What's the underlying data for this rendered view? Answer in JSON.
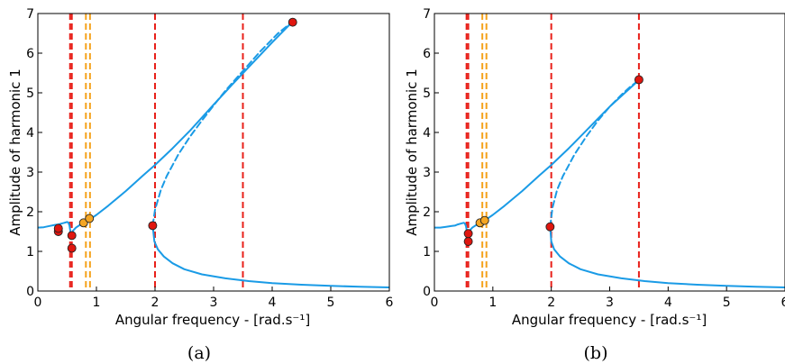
{
  "colors": {
    "curve": "#1a9be6",
    "red_line": "#e8201a",
    "orange_line": "#f4a21c",
    "red_marker": "#e0160f",
    "orange_marker": "#f5a623",
    "marker_edge": "#222222"
  },
  "chart_data": [
    {
      "type": "line",
      "caption": "(a)",
      "xlabel": "Angular frequency - [rad.s⁻¹]",
      "ylabel": "Amplitude of harmonic 1",
      "xlim": [
        0,
        6
      ],
      "ylim": [
        0,
        7
      ],
      "xticks": [
        0,
        1,
        2,
        3,
        4,
        5,
        6
      ],
      "yticks": [
        0,
        1,
        2,
        3,
        4,
        5,
        6,
        7
      ],
      "grid": false,
      "series": [
        {
          "style": "solid",
          "x": [
            0,
            0.1,
            0.2,
            0.3,
            0.35,
            0.4,
            0.45,
            0.5,
            0.52,
            0.54,
            0.55,
            0.56,
            0.57,
            0.58,
            0.6,
            0.65,
            0.7,
            0.75,
            0.8,
            0.9,
            1.0,
            1.2,
            1.5,
            1.8,
            2.0,
            2.3,
            2.6,
            3.0,
            3.3,
            3.6,
            4.0,
            4.35
          ],
          "y": [
            1.6,
            1.61,
            1.64,
            1.67,
            1.68,
            1.7,
            1.72,
            1.74,
            1.73,
            1.65,
            1.55,
            1.45,
            1.4,
            1.44,
            1.52,
            1.6,
            1.65,
            1.7,
            1.74,
            1.82,
            1.92,
            2.15,
            2.52,
            2.92,
            3.18,
            3.6,
            4.05,
            4.7,
            5.18,
            5.65,
            6.27,
            6.8
          ]
        },
        {
          "style": "dashed",
          "x": [
            1.96,
            2.0,
            2.1,
            2.2,
            2.4,
            2.6,
            2.8,
            3.0,
            3.2,
            3.5,
            3.8,
            4.1,
            4.35
          ],
          "y": [
            1.65,
            2.05,
            2.55,
            2.9,
            3.45,
            3.9,
            4.3,
            4.68,
            5.05,
            5.55,
            6.05,
            6.5,
            6.8
          ]
        },
        {
          "style": "solid",
          "x": [
            1.96,
            1.99,
            2.05,
            2.15,
            2.3,
            2.5,
            2.8,
            3.2,
            3.6,
            4.0,
            4.5,
            5.0,
            5.5,
            6.0
          ],
          "y": [
            1.65,
            1.25,
            1.05,
            0.87,
            0.7,
            0.55,
            0.42,
            0.32,
            0.25,
            0.2,
            0.16,
            0.13,
            0.11,
            0.09
          ]
        }
      ],
      "vlines": [
        {
          "x": 0.55,
          "color": "red"
        },
        {
          "x": 0.58,
          "color": "red"
        },
        {
          "x": 0.82,
          "color": "orange"
        },
        {
          "x": 0.89,
          "color": "orange"
        },
        {
          "x": 2.0,
          "color": "red"
        },
        {
          "x": 3.5,
          "color": "red"
        }
      ],
      "markers": [
        {
          "x": 0.35,
          "y": 1.5,
          "color": "red"
        },
        {
          "x": 0.35,
          "y": 1.58,
          "color": "red"
        },
        {
          "x": 0.58,
          "y": 1.08,
          "color": "red"
        },
        {
          "x": 0.58,
          "y": 1.4,
          "color": "red"
        },
        {
          "x": 0.78,
          "y": 1.72,
          "color": "orange"
        },
        {
          "x": 0.88,
          "y": 1.83,
          "color": "orange"
        },
        {
          "x": 1.96,
          "y": 1.65,
          "color": "red"
        },
        {
          "x": 4.35,
          "y": 6.78,
          "color": "red"
        }
      ]
    },
    {
      "type": "line",
      "caption": "(b)",
      "xlabel": "Angular frequency - [rad.s⁻¹]",
      "ylabel": "Amplitude of harmonic 1",
      "xlim": [
        0,
        6
      ],
      "ylim": [
        0,
        7
      ],
      "xticks": [
        0,
        1,
        2,
        3,
        4,
        5,
        6
      ],
      "yticks": [
        0,
        1,
        2,
        3,
        4,
        5,
        6,
        7
      ],
      "grid": false,
      "series": [
        {
          "style": "solid",
          "x": [
            0,
            0.1,
            0.2,
            0.3,
            0.35,
            0.4,
            0.45,
            0.5,
            0.52,
            0.54,
            0.55,
            0.56,
            0.57,
            0.58,
            0.6,
            0.65,
            0.7,
            0.75,
            0.8,
            0.9,
            1.0,
            1.2,
            1.5,
            1.8,
            2.0,
            2.3,
            2.6,
            3.0,
            3.3,
            3.5
          ],
          "y": [
            1.6,
            1.6,
            1.62,
            1.64,
            1.65,
            1.68,
            1.7,
            1.72,
            1.71,
            1.64,
            1.55,
            1.45,
            1.4,
            1.44,
            1.52,
            1.6,
            1.65,
            1.7,
            1.74,
            1.82,
            1.92,
            2.15,
            2.52,
            2.92,
            3.18,
            3.6,
            4.05,
            4.65,
            5.05,
            5.32
          ]
        },
        {
          "style": "dashed",
          "x": [
            1.98,
            2.02,
            2.1,
            2.2,
            2.4,
            2.6,
            2.8,
            3.0,
            3.2,
            3.35,
            3.5
          ],
          "y": [
            1.62,
            2.1,
            2.55,
            2.9,
            3.45,
            3.9,
            4.3,
            4.65,
            4.95,
            5.15,
            5.32
          ]
        },
        {
          "style": "solid",
          "x": [
            1.98,
            2.0,
            2.05,
            2.15,
            2.3,
            2.5,
            2.8,
            3.2,
            3.6,
            4.0,
            4.5,
            5.0,
            5.5,
            6.0
          ],
          "y": [
            1.62,
            1.25,
            1.05,
            0.87,
            0.7,
            0.55,
            0.42,
            0.32,
            0.25,
            0.2,
            0.16,
            0.13,
            0.11,
            0.09
          ]
        }
      ],
      "vlines": [
        {
          "x": 0.55,
          "color": "red"
        },
        {
          "x": 0.58,
          "color": "red"
        },
        {
          "x": 0.82,
          "color": "orange"
        },
        {
          "x": 0.89,
          "color": "orange"
        },
        {
          "x": 2.0,
          "color": "red"
        },
        {
          "x": 3.5,
          "color": "red"
        }
      ],
      "markers": [
        {
          "x": 0.58,
          "y": 1.25,
          "color": "red"
        },
        {
          "x": 0.58,
          "y": 1.45,
          "color": "red"
        },
        {
          "x": 0.78,
          "y": 1.72,
          "color": "orange"
        },
        {
          "x": 0.86,
          "y": 1.78,
          "color": "orange"
        },
        {
          "x": 1.98,
          "y": 1.62,
          "color": "red"
        },
        {
          "x": 3.5,
          "y": 5.33,
          "color": "red"
        }
      ]
    }
  ]
}
